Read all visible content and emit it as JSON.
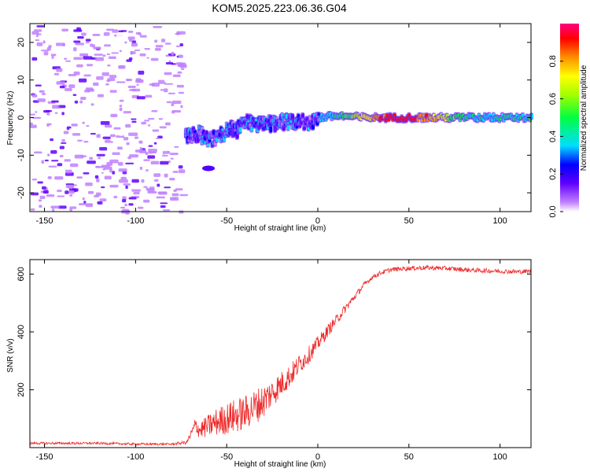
{
  "title": "KOM5.2025.223.06.36.G04",
  "colors": {
    "axis": "#000000",
    "snr_line": "#ee2a2a",
    "background": "#ffffff"
  },
  "chart_data": [
    {
      "type": "heatmap",
      "id": "spectrogram",
      "xlabel": "Height of straight line (km)",
      "ylabel": "Frequency (Hz)",
      "xlim": [
        -158,
        117
      ],
      "ylim": [
        -25,
        25
      ],
      "xticks": [
        -150,
        -100,
        -50,
        0,
        50,
        100
      ],
      "yticks": [
        -20,
        -10,
        0,
        10,
        20
      ],
      "ridge": [
        [
          -72,
          -4.5
        ],
        [
          -65,
          -4.5
        ],
        [
          -60,
          -6
        ],
        [
          -55,
          -5
        ],
        [
          -50,
          -3
        ],
        [
          -45,
          -3.5
        ],
        [
          -40,
          -1
        ],
        [
          -35,
          -2
        ],
        [
          -30,
          -1.5
        ],
        [
          -25,
          -1.5
        ],
        [
          -20,
          -1
        ],
        [
          -15,
          -1.5
        ],
        [
          -10,
          -1
        ],
        [
          -5,
          -1.5
        ],
        [
          0,
          0
        ],
        [
          10,
          0.5
        ],
        [
          25,
          0
        ],
        [
          50,
          0
        ],
        [
          75,
          0
        ],
        [
          100,
          0
        ],
        [
          117,
          0
        ]
      ],
      "colorbar": {
        "label": "Normalized spectral amplitude",
        "range": [
          0.0,
          1.0
        ],
        "ticks": [
          0.0,
          0.2,
          0.4,
          0.6,
          0.8
        ]
      }
    },
    {
      "type": "line",
      "id": "snr",
      "xlabel": "Height of straight line (km)",
      "ylabel": "SNR (v/v)",
      "xlim": [
        -158,
        117
      ],
      "ylim": [
        0,
        650
      ],
      "xticks": [
        -150,
        -100,
        -50,
        0,
        50,
        100
      ],
      "yticks": [
        200,
        400,
        600
      ],
      "series": [
        {
          "name": "SNR",
          "x": [
            -158,
            -140,
            -120,
            -100,
            -80,
            -72,
            -70,
            -67,
            -65,
            -60,
            -55,
            -50,
            -45,
            -40,
            -35,
            -30,
            -25,
            -20,
            -15,
            -10,
            -5,
            0,
            5,
            10,
            15,
            20,
            25,
            30,
            35,
            40,
            45,
            50,
            60,
            70,
            80,
            90,
            100,
            110,
            117
          ],
          "values": [
            15,
            15,
            15,
            12,
            12,
            18,
            40,
            80,
            60,
            75,
            90,
            100,
            110,
            120,
            140,
            160,
            190,
            220,
            250,
            290,
            320,
            360,
            400,
            440,
            480,
            520,
            560,
            590,
            605,
            615,
            618,
            620,
            622,
            620,
            615,
            612,
            610,
            608,
            610
          ],
          "noise_amp": [
            4,
            4,
            4,
            4,
            4,
            6,
            15,
            30,
            30,
            40,
            50,
            55,
            60,
            60,
            60,
            60,
            50,
            45,
            40,
            35,
            30,
            25,
            22,
            18,
            15,
            12,
            10,
            8,
            8,
            8,
            8,
            8,
            8,
            8,
            8,
            8,
            8,
            8,
            8
          ]
        }
      ]
    }
  ]
}
